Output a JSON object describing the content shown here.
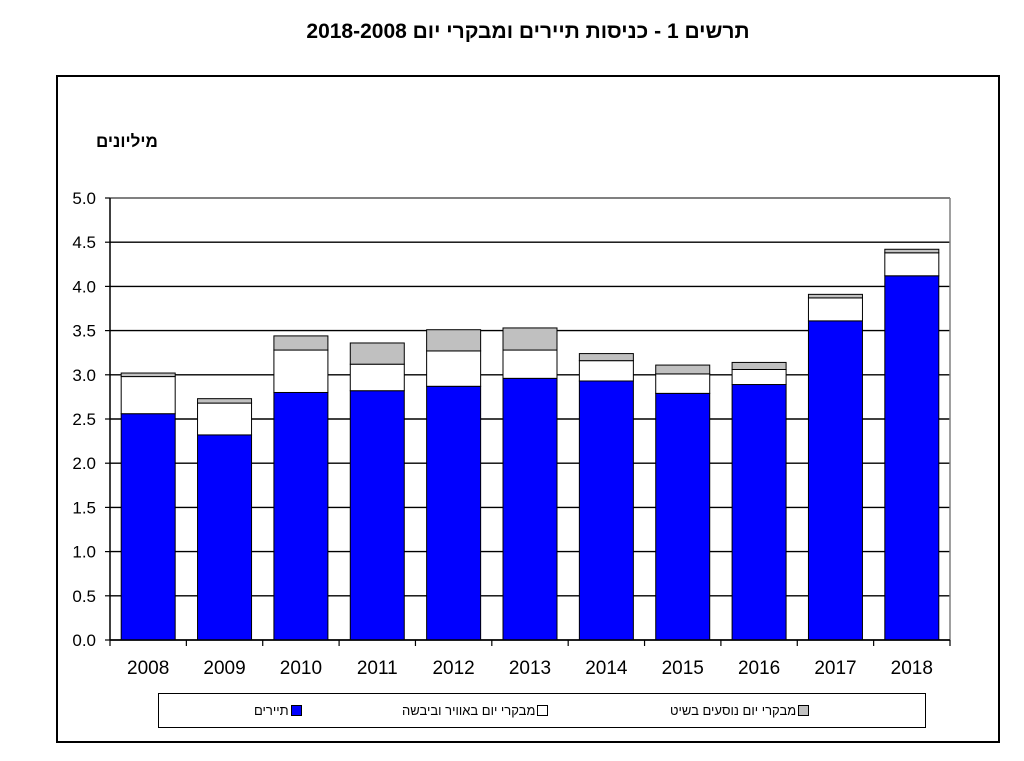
{
  "chart_data": {
    "type": "bar",
    "stacked": true,
    "title": "תרשים 1 -  כניסות תיירים ומבקרי יום 2018-2008",
    "ylabel": "מיליונים",
    "xlabel": "",
    "ylim": [
      0,
      5
    ],
    "yticks": [
      "0.0",
      "0.5",
      "1.0",
      "1.5",
      "2.0",
      "2.5",
      "3.0",
      "3.5",
      "4.0",
      "4.5",
      "5.0"
    ],
    "grid": true,
    "legend_position": "bottom",
    "categories": [
      "2008",
      "2009",
      "2010",
      "2011",
      "2012",
      "2013",
      "2014",
      "2015",
      "2016",
      "2017",
      "2018"
    ],
    "series": [
      {
        "name": "תיירים",
        "color": "#0000ff",
        "values": [
          2.56,
          2.32,
          2.8,
          2.82,
          2.87,
          2.96,
          2.93,
          2.79,
          2.89,
          3.61,
          4.12
        ]
      },
      {
        "name": "מבקרי יום באוויר וביבשה",
        "color": "#ffffff",
        "values": [
          0.42,
          0.36,
          0.48,
          0.3,
          0.4,
          0.32,
          0.23,
          0.22,
          0.17,
          0.26,
          0.26
        ]
      },
      {
        "name": "מבקרי יום נוסעים בשיט",
        "color": "#c0c0c0",
        "values": [
          0.04,
          0.05,
          0.16,
          0.24,
          0.24,
          0.25,
          0.08,
          0.1,
          0.08,
          0.04,
          0.04
        ]
      }
    ]
  }
}
